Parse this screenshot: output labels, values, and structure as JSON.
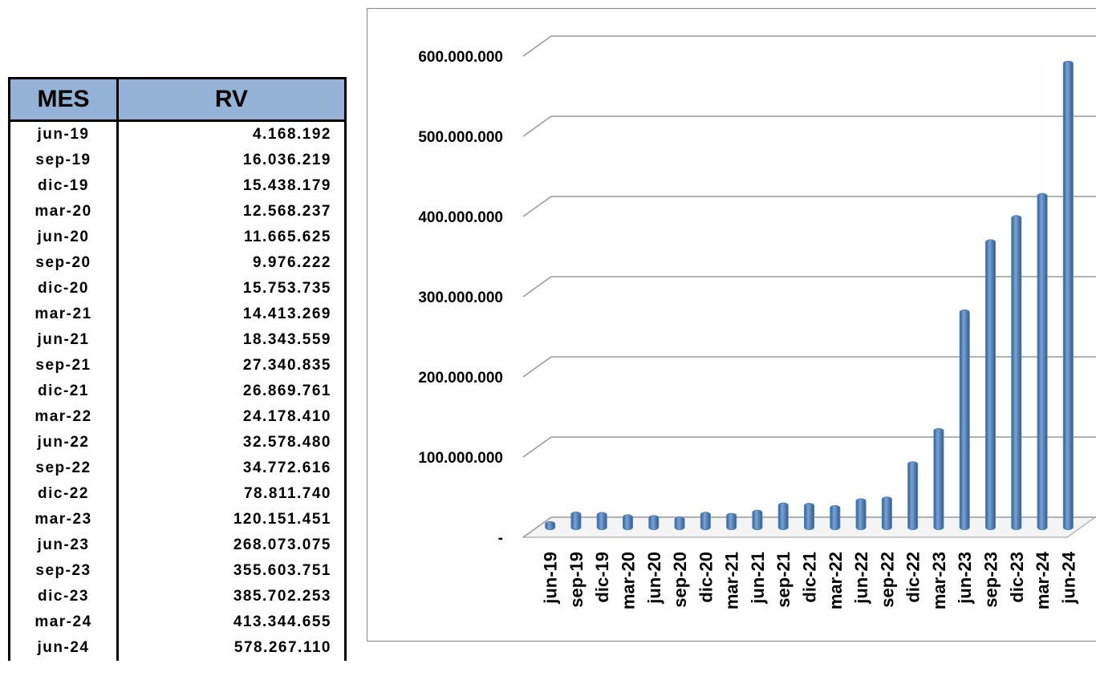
{
  "table": {
    "header": [
      "MES",
      "RV"
    ],
    "rows": [
      [
        "jun-19",
        "4.168.192"
      ],
      [
        "sep-19",
        "16.036.219"
      ],
      [
        "dic-19",
        "15.438.179"
      ],
      [
        "mar-20",
        "12.568.237"
      ],
      [
        "jun-20",
        "11.665.625"
      ],
      [
        "sep-20",
        "9.976.222"
      ],
      [
        "dic-20",
        "15.753.735"
      ],
      [
        "mar-21",
        "14.413.269"
      ],
      [
        "jun-21",
        "18.343.559"
      ],
      [
        "sep-21",
        "27.340.835"
      ],
      [
        "dic-21",
        "26.869.761"
      ],
      [
        "mar-22",
        "24.178.410"
      ],
      [
        "jun-22",
        "32.578.480"
      ],
      [
        "sep-22",
        "34.772.616"
      ],
      [
        "dic-22",
        "78.811.740"
      ],
      [
        "mar-23",
        "120.151.451"
      ],
      [
        "jun-23",
        "268.073.075"
      ],
      [
        "sep-23",
        "355.603.751"
      ],
      [
        "dic-23",
        "385.702.253"
      ],
      [
        "mar-24",
        "413.344.655"
      ],
      [
        "jun-24",
        "578.267.110"
      ]
    ]
  },
  "chart_data": {
    "type": "bar",
    "categories": [
      "jun-19",
      "sep-19",
      "dic-19",
      "mar-20",
      "jun-20",
      "sep-20",
      "dic-20",
      "mar-21",
      "jun-21",
      "sep-21",
      "dic-21",
      "mar-22",
      "jun-22",
      "sep-22",
      "dic-22",
      "mar-23",
      "jun-23",
      "sep-23",
      "dic-23",
      "mar-24",
      "jun-24"
    ],
    "values": [
      4168192,
      16036219,
      15438179,
      12568237,
      11665625,
      9976222,
      15753735,
      14413269,
      18343559,
      27340835,
      26869761,
      24178410,
      32578480,
      34772616,
      78811740,
      120151451,
      268073075,
      355603751,
      385702253,
      413344655,
      578267110
    ],
    "color": "#4f81bd",
    "ylim": [
      0,
      600000000
    ],
    "yticks": [
      {
        "value": 0,
        "label": "-"
      },
      {
        "value": 100000000,
        "label": "100.000.000"
      },
      {
        "value": 200000000,
        "label": "200.000.000"
      },
      {
        "value": 300000000,
        "label": "300.000.000"
      },
      {
        "value": 400000000,
        "label": "400.000.000"
      },
      {
        "value": 500000000,
        "label": "500.000.000"
      },
      {
        "value": 600000000,
        "label": "600.000.000"
      }
    ],
    "grid": true
  }
}
